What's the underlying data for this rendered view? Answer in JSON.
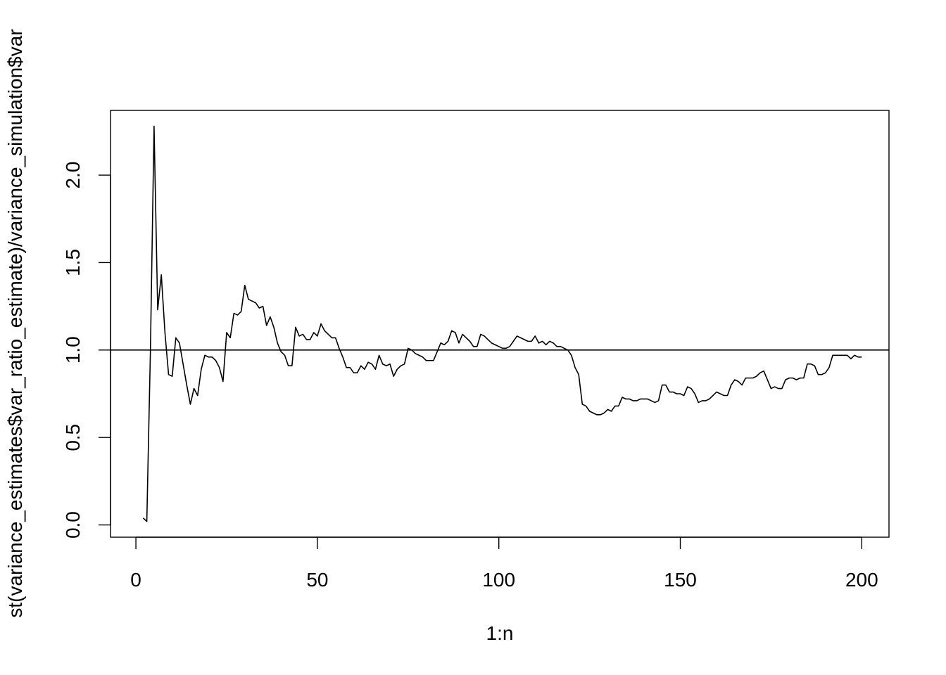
{
  "chart_data": {
    "type": "line",
    "title": "",
    "xlabel": "1:n",
    "ylabel": "st(variance_estimates$var_ratio_estimate)/variance_simulation$var",
    "xlim": [
      -7,
      207.5
    ],
    "ylim": [
      -0.07,
      2.37
    ],
    "xticks": [
      0,
      50,
      100,
      150,
      200
    ],
    "xtick_labels": [
      "0",
      "50",
      "100",
      "150",
      "200"
    ],
    "yticks": [
      0.0,
      0.5,
      1.0,
      1.5,
      2.0
    ],
    "ytick_labels": [
      "0.0",
      "0.5",
      "1.0",
      "1.5",
      "2.0"
    ],
    "grid": false,
    "hline": 1.0,
    "series": [
      {
        "color": "#000000",
        "x": [
          2,
          3,
          4,
          5,
          6,
          7,
          8,
          9,
          10,
          11,
          12,
          13,
          14,
          15,
          16,
          17,
          18,
          19,
          20,
          21,
          22,
          23,
          24,
          25,
          26,
          27,
          28,
          29,
          30,
          31,
          32,
          33,
          34,
          35,
          36,
          37,
          38,
          39,
          40,
          41,
          42,
          43,
          44,
          45,
          46,
          47,
          48,
          49,
          50,
          51,
          52,
          53,
          54,
          55,
          56,
          57,
          58,
          59,
          60,
          61,
          62,
          63,
          64,
          65,
          66,
          67,
          68,
          69,
          70,
          71,
          72,
          73,
          74,
          75,
          76,
          77,
          78,
          79,
          80,
          81,
          82,
          83,
          84,
          85,
          86,
          87,
          88,
          89,
          90,
          91,
          92,
          93,
          94,
          95,
          96,
          97,
          98,
          99,
          100,
          101,
          102,
          103,
          104,
          105,
          106,
          107,
          108,
          109,
          110,
          111,
          112,
          113,
          114,
          115,
          116,
          117,
          118,
          119,
          120,
          121,
          122,
          123,
          124,
          125,
          126,
          127,
          128,
          129,
          130,
          131,
          132,
          133,
          134,
          135,
          136,
          137,
          138,
          139,
          140,
          141,
          142,
          143,
          144,
          145,
          146,
          147,
          148,
          149,
          150,
          151,
          152,
          153,
          154,
          155,
          156,
          157,
          158,
          159,
          160,
          161,
          162,
          163,
          164,
          165,
          166,
          167,
          168,
          169,
          170,
          171,
          172,
          173,
          174,
          175,
          176,
          177,
          178,
          179,
          180,
          181,
          182,
          183,
          184,
          185,
          186,
          187,
          188,
          189,
          190,
          191,
          192,
          193,
          194,
          195,
          196,
          197,
          198,
          199,
          200
        ],
        "y": [
          0.04,
          0.02,
          1.0,
          2.28,
          1.23,
          1.43,
          1.1,
          0.86,
          0.85,
          1.07,
          1.04,
          0.92,
          0.8,
          0.69,
          0.78,
          0.74,
          0.89,
          0.97,
          0.96,
          0.96,
          0.94,
          0.9,
          0.82,
          1.1,
          1.07,
          1.21,
          1.2,
          1.22,
          1.37,
          1.29,
          1.28,
          1.27,
          1.24,
          1.25,
          1.14,
          1.19,
          1.13,
          1.04,
          0.99,
          0.97,
          0.91,
          0.91,
          1.13,
          1.08,
          1.09,
          1.06,
          1.06,
          1.1,
          1.08,
          1.15,
          1.11,
          1.09,
          1.07,
          1.07,
          1.01,
          0.96,
          0.9,
          0.9,
          0.87,
          0.87,
          0.91,
          0.89,
          0.93,
          0.92,
          0.89,
          0.97,
          0.92,
          0.91,
          0.92,
          0.85,
          0.89,
          0.91,
          0.92,
          1.01,
          1.0,
          0.98,
          0.97,
          0.96,
          0.94,
          0.94,
          0.94,
          0.99,
          1.04,
          1.03,
          1.05,
          1.11,
          1.1,
          1.04,
          1.09,
          1.07,
          1.05,
          1.02,
          1.02,
          1.09,
          1.08,
          1.06,
          1.04,
          1.03,
          1.02,
          1.01,
          1.01,
          1.02,
          1.05,
          1.08,
          1.07,
          1.06,
          1.05,
          1.05,
          1.08,
          1.04,
          1.05,
          1.03,
          1.05,
          1.04,
          1.02,
          1.02,
          1.01,
          1.0,
          0.97,
          0.9,
          0.86,
          0.69,
          0.68,
          0.65,
          0.64,
          0.63,
          0.63,
          0.64,
          0.66,
          0.65,
          0.68,
          0.68,
          0.73,
          0.72,
          0.72,
          0.71,
          0.71,
          0.72,
          0.72,
          0.72,
          0.71,
          0.7,
          0.71,
          0.8,
          0.8,
          0.76,
          0.76,
          0.75,
          0.75,
          0.74,
          0.79,
          0.78,
          0.75,
          0.7,
          0.71,
          0.71,
          0.72,
          0.74,
          0.76,
          0.75,
          0.74,
          0.74,
          0.8,
          0.83,
          0.82,
          0.8,
          0.84,
          0.84,
          0.84,
          0.85,
          0.87,
          0.88,
          0.83,
          0.78,
          0.79,
          0.78,
          0.78,
          0.83,
          0.84,
          0.84,
          0.83,
          0.84,
          0.84,
          0.92,
          0.92,
          0.91,
          0.86,
          0.86,
          0.87,
          0.9,
          0.97,
          0.97,
          0.97,
          0.97,
          0.97,
          0.95,
          0.97,
          0.96,
          0.96
        ]
      }
    ]
  }
}
